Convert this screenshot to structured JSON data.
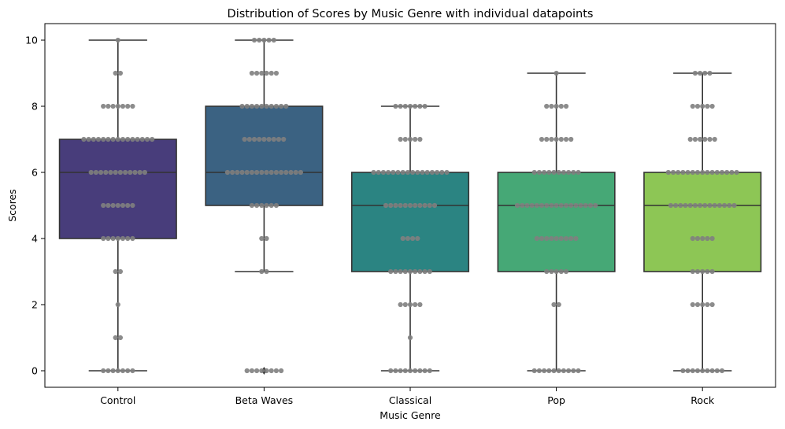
{
  "chart_data": {
    "type": "box",
    "title": "Distribution of Scores by Music Genre with individual datapoints",
    "xlabel": "Music Genre",
    "ylabel": "Scores",
    "ylim": [
      -0.5,
      10.5
    ],
    "yticks": [
      0,
      2,
      4,
      6,
      8,
      10
    ],
    "grid": false,
    "legend": "none",
    "categories": [
      "Control",
      "Beta Waves",
      "Classical",
      "Pop",
      "Rock"
    ],
    "boxes": [
      {
        "category": "Control",
        "q1": 4,
        "median": 6,
        "q3": 7,
        "whisker_low": 0,
        "whisker_high": 10,
        "color": "#483d7b",
        "outliers": []
      },
      {
        "category": "Beta Waves",
        "q1": 5,
        "median": 6,
        "q3": 8,
        "whisker_low": 3,
        "whisker_high": 10,
        "color": "#3b6282",
        "outliers": [
          0
        ]
      },
      {
        "category": "Classical",
        "q1": 3,
        "median": 5,
        "q3": 6,
        "whisker_low": 0,
        "whisker_high": 8,
        "color": "#2b8482",
        "outliers": []
      },
      {
        "category": "Pop",
        "q1": 3,
        "median": 5,
        "q3": 6,
        "whisker_low": 0,
        "whisker_high": 9,
        "color": "#46a876",
        "outliers": []
      },
      {
        "category": "Rock",
        "q1": 3,
        "median": 5,
        "q3": 6,
        "whisker_low": 0,
        "whisker_high": 9,
        "color": "#8dc655",
        "outliers": []
      }
    ],
    "points": [
      {
        "category": "Control",
        "counts": {
          "0": 7,
          "1": 2,
          "2": 1,
          "3": 2,
          "4": 7,
          "5": 7,
          "6": 12,
          "7": 15,
          "8": 7,
          "9": 2,
          "10": 1
        }
      },
      {
        "category": "Beta Waves",
        "counts": {
          "0": 8,
          "3": 2,
          "4": 2,
          "5": 6,
          "6": 16,
          "7": 9,
          "8": 10,
          "9": 6,
          "10": 5
        }
      },
      {
        "category": "Classical",
        "counts": {
          "0": 9,
          "1": 1,
          "2": 5,
          "3": 9,
          "4": 4,
          "5": 11,
          "6": 16,
          "7": 5,
          "8": 7
        }
      },
      {
        "category": "Pop",
        "counts": {
          "0": 10,
          "2": 2,
          "3": 5,
          "4": 9,
          "5": 17,
          "6": 10,
          "7": 7,
          "8": 5,
          "9": 1
        }
      },
      {
        "category": "Rock",
        "counts": {
          "0": 9,
          "2": 5,
          "3": 5,
          "4": 5,
          "5": 14,
          "6": 15,
          "7": 6,
          "8": 5,
          "9": 4
        }
      }
    ],
    "point_color": "#808080"
  }
}
